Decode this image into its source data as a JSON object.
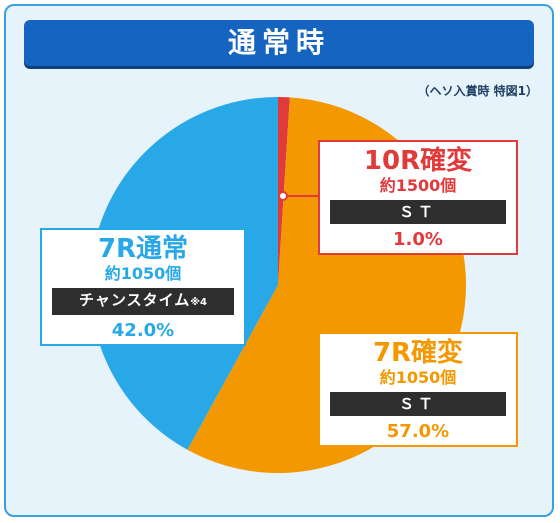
{
  "title": "通常時",
  "note": "（ヘソ入賞時 特図1）",
  "colors": {
    "title_bg": "#1565c0",
    "frame_border": "#3aa0e0",
    "frame_bg": "#e6f3fb",
    "red": "#e03a3a",
    "orange": "#f39800",
    "blue": "#29a8e8"
  },
  "chart_data": {
    "type": "pie",
    "title": "通常時",
    "slices": [
      {
        "name": "10R確変",
        "rounds": "約1500個",
        "mode": "ＳＴ",
        "mode_note": "",
        "value": 1.0,
        "label": "1.0%",
        "color": "#e03a3a"
      },
      {
        "name": "7R確変",
        "rounds": "約1050個",
        "mode": "ＳＴ",
        "mode_note": "",
        "value": 57.0,
        "label": "57.0%",
        "color": "#f39800"
      },
      {
        "name": "7R通常",
        "rounds": "約1050個",
        "mode": "チャンスタイム",
        "mode_note": "※4",
        "value": 42.0,
        "label": "42.0%",
        "color": "#29a8e8"
      }
    ]
  }
}
